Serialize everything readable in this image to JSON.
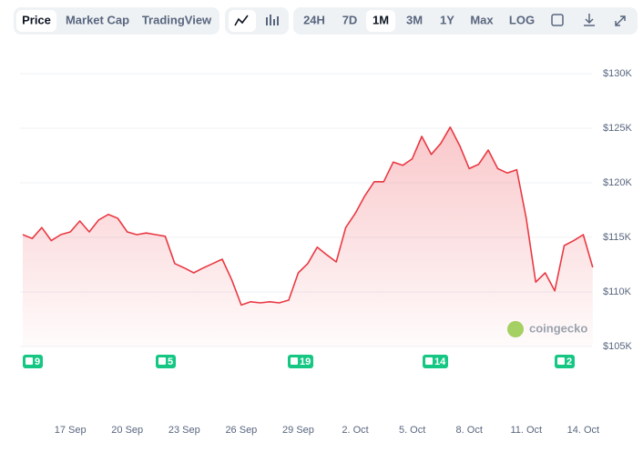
{
  "toolbar": {
    "views": [
      "Price",
      "Market Cap",
      "TradingView"
    ],
    "active_view": 0,
    "ranges": [
      "24H",
      "7D",
      "1M",
      "3M",
      "1Y",
      "Max",
      "LOG"
    ],
    "active_range": 2
  },
  "chart_data": {
    "type": "area",
    "color": "#ea3943",
    "categories": [
      null,
      null,
      null,
      null,
      null,
      "17 Sep",
      null,
      null,
      null,
      null,
      null,
      "20 Sep",
      null,
      null,
      null,
      null,
      null,
      "23 Sep",
      null,
      null,
      null,
      null,
      null,
      "26 Sep",
      null,
      null,
      null,
      null,
      null,
      "29 Sep",
      null,
      null,
      null,
      null,
      null,
      "2. Oct",
      null,
      null,
      null,
      null,
      null,
      "5. Oct",
      null,
      null,
      null,
      null,
      null,
      "8. Oct",
      null,
      null,
      null,
      null,
      null,
      "11. Oct",
      null,
      null,
      null,
      null,
      null,
      "14. Oct",
      null
    ],
    "values": [
      115250,
      114900,
      115900,
      114700,
      115250,
      115500,
      116500,
      115500,
      116600,
      117100,
      116750,
      115500,
      115250,
      115400,
      115250,
      115100,
      112600,
      112200,
      111750,
      112200,
      112600,
      113000,
      111100,
      108800,
      109100,
      109000,
      109100,
      109000,
      109250,
      111750,
      112600,
      114100,
      113400,
      112750,
      115900,
      117200,
      118800,
      120100,
      120100,
      121900,
      121600,
      122200,
      124250,
      122600,
      123600,
      125100,
      123400,
      121300,
      121700,
      123000,
      121300,
      120900,
      121200,
      116750,
      110900,
      111750,
      110100,
      114250,
      114700,
      115250,
      112250
    ],
    "ylim": [
      105000,
      132000
    ],
    "yticks": [
      {
        "value": 105000,
        "label": "$105K"
      },
      {
        "value": 110000,
        "label": "$110K"
      },
      {
        "value": 115000,
        "label": "$115K"
      },
      {
        "value": 120000,
        "label": "$120K"
      },
      {
        "value": 125000,
        "label": "$125K"
      },
      {
        "value": 130000,
        "label": "$130K"
      }
    ],
    "grid": true,
    "watermark": "coingecko",
    "annotations": [
      "9",
      "5",
      "19",
      "14",
      "2"
    ]
  }
}
